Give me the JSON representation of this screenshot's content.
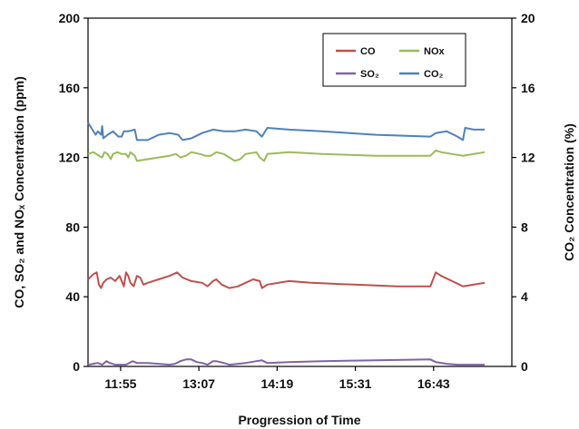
{
  "chart_data": {
    "type": "line",
    "title": "",
    "xlabel": "Progression of Time",
    "ylabel_left": "CO, SO₂ and NOₓ Concentration (ppm)",
    "ylabel_right": "CO₂ Concentration (%)",
    "x_ticks": [
      "11:55",
      "13:07",
      "14:19",
      "15:31",
      "16:43"
    ],
    "x_range_minutes": [
      685,
      1075
    ],
    "y_left_range": [
      0,
      200
    ],
    "y_left_ticks": [
      "0",
      "40",
      "80",
      "120",
      "160",
      "200"
    ],
    "y_right_range": [
      0,
      20
    ],
    "y_right_ticks": [
      "0",
      "4",
      "8",
      "12",
      "16",
      "20"
    ],
    "grid": false,
    "legend_position": "top-right",
    "series": [
      {
        "name": "CO",
        "axis": "left",
        "color": "#c0504d",
        "points": [
          [
            685,
            50
          ],
          [
            690,
            53
          ],
          [
            693,
            54
          ],
          [
            695,
            47
          ],
          [
            697,
            45
          ],
          [
            699,
            48
          ],
          [
            702,
            50
          ],
          [
            706,
            51
          ],
          [
            710,
            49
          ],
          [
            714,
            52
          ],
          [
            716,
            49
          ],
          [
            718,
            46
          ],
          [
            720,
            54
          ],
          [
            722,
            52
          ],
          [
            724,
            48
          ],
          [
            727,
            46
          ],
          [
            730,
            52
          ],
          [
            733,
            51
          ],
          [
            736,
            47
          ],
          [
            740,
            48
          ],
          [
            750,
            50
          ],
          [
            760,
            52
          ],
          [
            767,
            54
          ],
          [
            772,
            51
          ],
          [
            780,
            49
          ],
          [
            790,
            48
          ],
          [
            795,
            46
          ],
          [
            800,
            49
          ],
          [
            803,
            50
          ],
          [
            808,
            47
          ],
          [
            815,
            45
          ],
          [
            823,
            46
          ],
          [
            830,
            48
          ],
          [
            837,
            50
          ],
          [
            843,
            49
          ],
          [
            845,
            45
          ],
          [
            850,
            47
          ],
          [
            870,
            49
          ],
          [
            890,
            48
          ],
          [
            930,
            47
          ],
          [
            970,
            46
          ],
          [
            1000,
            46
          ],
          [
            1005,
            54
          ],
          [
            1010,
            52
          ],
          [
            1020,
            49
          ],
          [
            1030,
            46
          ],
          [
            1040,
            47
          ],
          [
            1050,
            48
          ]
        ]
      },
      {
        "name": "NOx",
        "axis": "left",
        "color": "#9bbb59",
        "points": [
          [
            685,
            122
          ],
          [
            690,
            123
          ],
          [
            695,
            121
          ],
          [
            698,
            120
          ],
          [
            700,
            123
          ],
          [
            703,
            122
          ],
          [
            706,
            119
          ],
          [
            708,
            122
          ],
          [
            712,
            123
          ],
          [
            716,
            122
          ],
          [
            720,
            122
          ],
          [
            722,
            120
          ],
          [
            724,
            123
          ],
          [
            728,
            121
          ],
          [
            730,
            118
          ],
          [
            740,
            119
          ],
          [
            750,
            120
          ],
          [
            760,
            121
          ],
          [
            766,
            122
          ],
          [
            770,
            120
          ],
          [
            775,
            121
          ],
          [
            780,
            123
          ],
          [
            788,
            122
          ],
          [
            793,
            121
          ],
          [
            798,
            121
          ],
          [
            803,
            123
          ],
          [
            810,
            122
          ],
          [
            815,
            120
          ],
          [
            820,
            118
          ],
          [
            825,
            119
          ],
          [
            830,
            122
          ],
          [
            840,
            123
          ],
          [
            843,
            120
          ],
          [
            847,
            118
          ],
          [
            850,
            122
          ],
          [
            870,
            123
          ],
          [
            900,
            122
          ],
          [
            950,
            121
          ],
          [
            1000,
            121
          ],
          [
            1005,
            124
          ],
          [
            1010,
            123
          ],
          [
            1020,
            122
          ],
          [
            1030,
            121
          ],
          [
            1040,
            122
          ],
          [
            1050,
            123
          ]
        ]
      },
      {
        "name": "SO₂",
        "axis": "left",
        "color": "#8064a2",
        "points": [
          [
            685,
            1
          ],
          [
            690,
            1.5
          ],
          [
            694,
            2
          ],
          [
            698,
            1
          ],
          [
            702,
            3
          ],
          [
            705,
            2
          ],
          [
            710,
            1
          ],
          [
            720,
            1
          ],
          [
            726,
            3
          ],
          [
            730,
            2
          ],
          [
            740,
            2
          ],
          [
            750,
            1.5
          ],
          [
            760,
            1
          ],
          [
            765,
            1.5
          ],
          [
            770,
            3
          ],
          [
            775,
            4
          ],
          [
            780,
            4
          ],
          [
            785,
            2.5
          ],
          [
            790,
            2
          ],
          [
            795,
            1
          ],
          [
            800,
            3
          ],
          [
            803,
            3
          ],
          [
            810,
            2
          ],
          [
            815,
            1
          ],
          [
            830,
            2
          ],
          [
            840,
            3
          ],
          [
            845,
            3.5
          ],
          [
            850,
            2
          ],
          [
            870,
            2.5
          ],
          [
            900,
            3
          ],
          [
            950,
            3.5
          ],
          [
            1000,
            4
          ],
          [
            1005,
            2.5
          ],
          [
            1015,
            1.5
          ],
          [
            1025,
            1
          ],
          [
            1050,
            1
          ]
        ]
      },
      {
        "name": "CO₂",
        "axis": "right",
        "color": "#4f81bd",
        "points": [
          [
            685,
            14.0
          ],
          [
            689,
            13.6
          ],
          [
            692,
            13.3
          ],
          [
            694,
            13.5
          ],
          [
            697,
            13.3
          ],
          [
            698,
            13.8
          ],
          [
            699,
            13.1
          ],
          [
            703,
            13.3
          ],
          [
            708,
            13.5
          ],
          [
            713,
            13.2
          ],
          [
            716,
            13.2
          ],
          [
            718,
            13.5
          ],
          [
            722,
            13.5
          ],
          [
            728,
            13.6
          ],
          [
            730,
            13.0
          ],
          [
            740,
            13.0
          ],
          [
            750,
            13.3
          ],
          [
            760,
            13.4
          ],
          [
            768,
            13.3
          ],
          [
            772,
            13.0
          ],
          [
            780,
            13.1
          ],
          [
            790,
            13.4
          ],
          [
            800,
            13.6
          ],
          [
            810,
            13.5
          ],
          [
            820,
            13.5
          ],
          [
            830,
            13.6
          ],
          [
            840,
            13.5
          ],
          [
            845,
            13.2
          ],
          [
            850,
            13.7
          ],
          [
            870,
            13.6
          ],
          [
            900,
            13.5
          ],
          [
            950,
            13.3
          ],
          [
            1000,
            13.2
          ],
          [
            1005,
            13.4
          ],
          [
            1015,
            13.5
          ],
          [
            1025,
            13.2
          ],
          [
            1030,
            13.0
          ],
          [
            1032,
            13.7
          ],
          [
            1040,
            13.6
          ],
          [
            1050,
            13.6
          ]
        ]
      }
    ],
    "legend": [
      {
        "name": "CO",
        "color": "#c0504d"
      },
      {
        "name": "NOx",
        "color": "#9bbb59"
      },
      {
        "name": "SO₂",
        "color": "#8064a2"
      },
      {
        "name": "CO₂",
        "color": "#4f81bd"
      }
    ]
  }
}
